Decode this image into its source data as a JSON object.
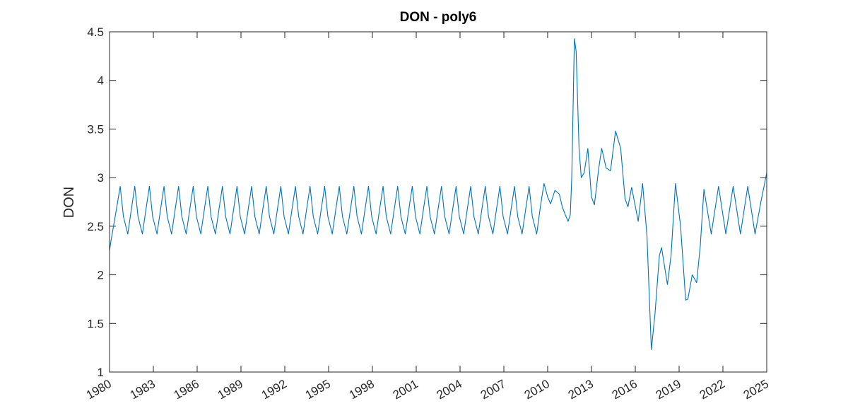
{
  "chart_data": {
    "type": "line",
    "title": "DON - poly6",
    "ylabel": "DON",
    "grid": false,
    "xlim": [
      1980,
      2025
    ],
    "xticks": [
      1980,
      1983,
      1986,
      1989,
      1992,
      1995,
      1998,
      2001,
      2004,
      2007,
      2010,
      2013,
      2016,
      2019,
      2022,
      2025
    ],
    "ylim": [
      1,
      4.5
    ],
    "yticks": [
      1,
      1.5,
      2,
      2.5,
      3,
      3.5,
      4,
      4.5
    ],
    "series": [
      {
        "color": "#0072bd",
        "x": [
          1980,
          1980.1,
          1980.5,
          1980.73,
          1980.95,
          1981.25,
          1981.5,
          1981.73,
          1981.95,
          1982.25,
          1982.5,
          1982.73,
          1982.95,
          1983.25,
          1983.5,
          1983.73,
          1983.95,
          1984.25,
          1984.5,
          1984.73,
          1984.95,
          1985.25,
          1985.5,
          1985.73,
          1985.95,
          1986.25,
          1986.5,
          1986.73,
          1986.95,
          1987.25,
          1987.5,
          1987.73,
          1987.95,
          1988.25,
          1988.5,
          1988.73,
          1988.95,
          1989.25,
          1989.5,
          1989.73,
          1989.95,
          1990.25,
          1990.5,
          1990.73,
          1990.95,
          1991.25,
          1991.5,
          1991.73,
          1991.95,
          1992.25,
          1992.5,
          1992.73,
          1992.95,
          1993.25,
          1993.5,
          1993.73,
          1993.95,
          1994.25,
          1994.5,
          1994.73,
          1994.95,
          1995.25,
          1995.5,
          1995.73,
          1995.95,
          1996.25,
          1996.5,
          1996.73,
          1996.95,
          1997.25,
          1997.5,
          1997.73,
          1997.95,
          1998.25,
          1998.5,
          1998.73,
          1998.95,
          1999.25,
          1999.5,
          1999.73,
          1999.95,
          2000.25,
          2000.5,
          2000.73,
          2000.95,
          2001.25,
          2001.5,
          2001.73,
          2001.95,
          2002.25,
          2002.5,
          2002.73,
          2002.95,
          2003.25,
          2003.5,
          2003.73,
          2003.95,
          2004.25,
          2004.5,
          2004.73,
          2004.95,
          2005.25,
          2005.5,
          2005.73,
          2005.95,
          2006.25,
          2006.5,
          2006.73,
          2006.95,
          2007.25,
          2007.5,
          2007.73,
          2007.95,
          2008.25,
          2008.5,
          2008.73,
          2008.95,
          2009.25,
          2009.5,
          2009.75,
          2010.0,
          2010.2,
          2010.5,
          2010.8,
          2011.0,
          2011.2,
          2011.4,
          2011.55,
          2011.65,
          2011.83,
          2011.95,
          2012.15,
          2012.3,
          2012.5,
          2012.75,
          2013.0,
          2013.2,
          2013.5,
          2013.7,
          2014.0,
          2014.3,
          2014.65,
          2015.0,
          2015.3,
          2015.5,
          2015.75,
          2016.2,
          2016.5,
          2016.8,
          2017.1,
          2017.35,
          2017.65,
          2017.8,
          2018.2,
          2018.45,
          2018.75,
          2019.1,
          2019.45,
          2019.6,
          2019.9,
          2020.2,
          2020.45,
          2020.7,
          2021.2,
          2021.7,
          2022.2,
          2022.7,
          2023.2,
          2023.7,
          2024.2,
          2024.6,
          2025.0
        ],
        "values": [
          2.25,
          2.35,
          2.7,
          2.91,
          2.6,
          2.42,
          2.68,
          2.91,
          2.6,
          2.42,
          2.68,
          2.91,
          2.6,
          2.42,
          2.68,
          2.91,
          2.6,
          2.42,
          2.68,
          2.91,
          2.6,
          2.42,
          2.68,
          2.91,
          2.6,
          2.42,
          2.68,
          2.91,
          2.6,
          2.42,
          2.68,
          2.91,
          2.6,
          2.42,
          2.68,
          2.91,
          2.6,
          2.42,
          2.68,
          2.91,
          2.6,
          2.42,
          2.68,
          2.91,
          2.6,
          2.42,
          2.68,
          2.91,
          2.6,
          2.42,
          2.68,
          2.91,
          2.6,
          2.42,
          2.68,
          2.91,
          2.6,
          2.42,
          2.68,
          2.91,
          2.6,
          2.42,
          2.68,
          2.91,
          2.6,
          2.42,
          2.68,
          2.91,
          2.6,
          2.42,
          2.68,
          2.91,
          2.6,
          2.42,
          2.68,
          2.91,
          2.6,
          2.42,
          2.68,
          2.91,
          2.6,
          2.42,
          2.68,
          2.91,
          2.6,
          2.42,
          2.68,
          2.91,
          2.6,
          2.42,
          2.68,
          2.91,
          2.6,
          2.42,
          2.68,
          2.91,
          2.6,
          2.42,
          2.68,
          2.91,
          2.6,
          2.42,
          2.68,
          2.91,
          2.6,
          2.42,
          2.68,
          2.91,
          2.6,
          2.42,
          2.68,
          2.91,
          2.6,
          2.42,
          2.68,
          2.91,
          2.6,
          2.42,
          2.7,
          2.94,
          2.8,
          2.73,
          2.87,
          2.83,
          2.7,
          2.62,
          2.55,
          2.62,
          3.0,
          4.43,
          4.3,
          3.3,
          3.0,
          3.05,
          3.3,
          2.8,
          2.72,
          3.1,
          3.3,
          3.1,
          3.07,
          3.48,
          3.3,
          2.78,
          2.7,
          2.9,
          2.55,
          2.94,
          2.4,
          1.23,
          1.6,
          2.2,
          2.28,
          1.9,
          2.2,
          2.94,
          2.5,
          1.74,
          1.75,
          2.0,
          1.92,
          2.3,
          2.88,
          2.42,
          2.91,
          2.42,
          2.91,
          2.42,
          2.91,
          2.42,
          2.75,
          3.05
        ]
      }
    ]
  }
}
